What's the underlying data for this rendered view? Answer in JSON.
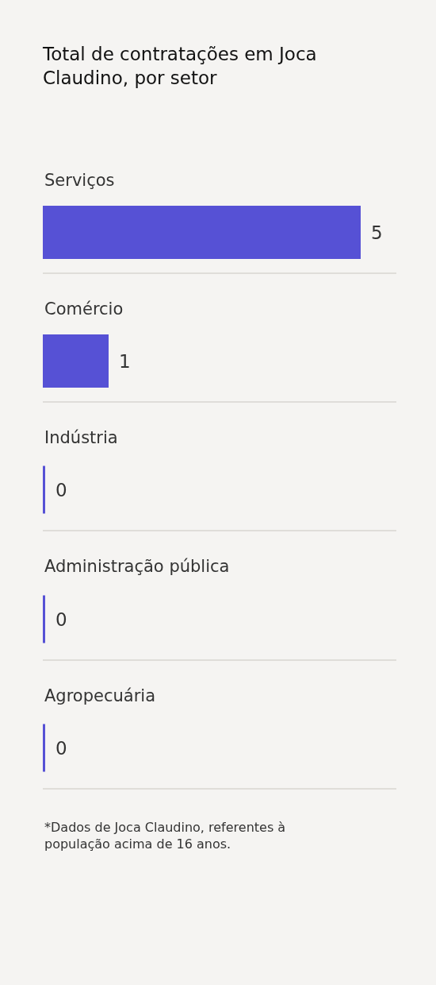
{
  "chart_data": {
    "type": "bar",
    "orientation": "horizontal",
    "title": "Total de contratações em Joca Claudino, por setor",
    "categories": [
      "Serviços",
      "Comércio",
      "Indústria",
      "Administração pública",
      "Agropecuária"
    ],
    "values": [
      5,
      1,
      0,
      0,
      0
    ],
    "color": "#5651d5",
    "xlim": [
      0,
      5.6
    ],
    "data_labels": true,
    "grid": "y",
    "tick_labels": "y",
    "annotations": [
      "*Dados de Joca Claudino, referentes à população acima de 16 anos."
    ]
  }
}
